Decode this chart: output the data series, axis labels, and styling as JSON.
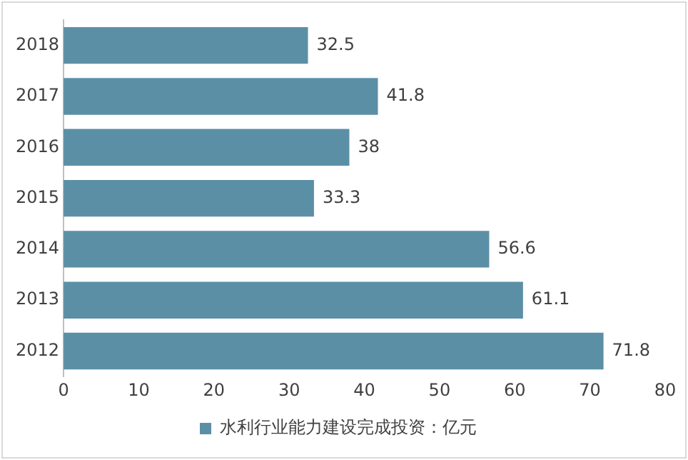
{
  "chart_data": {
    "type": "bar",
    "orientation": "horizontal",
    "categories": [
      "2018",
      "2017",
      "2016",
      "2015",
      "2014",
      "2013",
      "2012"
    ],
    "series": [
      {
        "name": "水利行业能力建设完成投资：亿元",
        "color": "#5b8fa6",
        "values": [
          32.5,
          41.8,
          38,
          33.3,
          56.6,
          61.1,
          71.8
        ]
      }
    ],
    "xlim": [
      0,
      80
    ],
    "xticks": [
      0,
      10,
      20,
      30,
      40,
      50,
      60,
      70,
      80
    ],
    "data_labels": true,
    "legend": "bottom",
    "grid": false
  }
}
